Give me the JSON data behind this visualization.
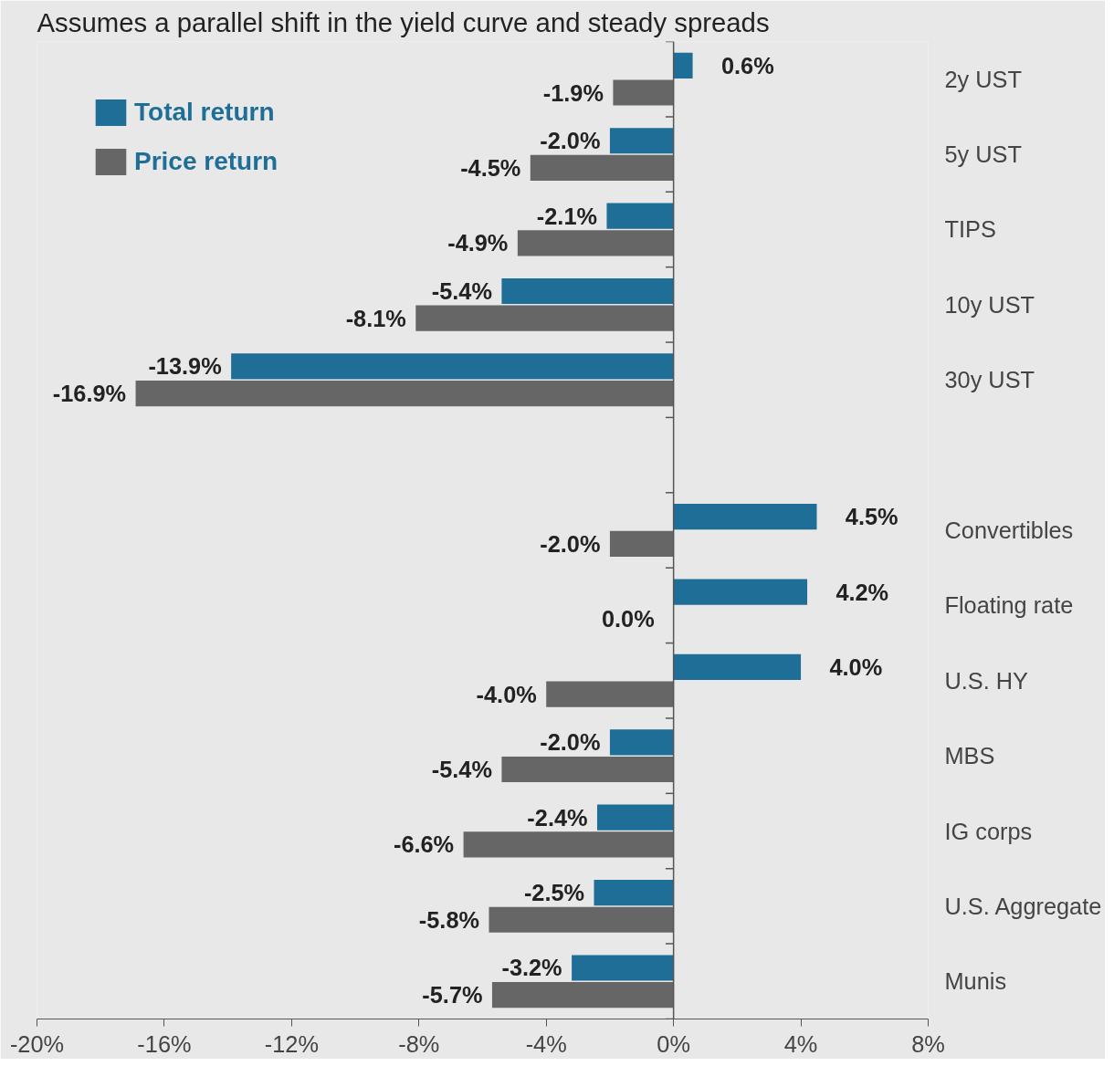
{
  "chart_data": {
    "type": "bar",
    "orientation": "horizontal",
    "title": "Assumes a parallel shift in the yield curve and steady spreads",
    "categories": [
      "2y UST",
      "5y UST",
      "TIPS",
      "10y UST",
      "30y UST",
      null,
      "Convertibles",
      "Floating rate",
      "U.S. HY",
      "MBS",
      "IG corps",
      "U.S. Aggregate",
      "Munis"
    ],
    "series": [
      {
        "name": "Total return",
        "color": "#1f6e97",
        "values": [
          0.6,
          -2.0,
          -2.1,
          -5.4,
          -13.9,
          null,
          4.5,
          4.2,
          4.0,
          -2.0,
          -2.4,
          -2.5,
          -3.2
        ],
        "value_labels": [
          "0.6%",
          "-2.0%",
          "-2.1%",
          "-5.4%",
          "-13.9%",
          null,
          "4.5%",
          "4.2%",
          "4.0%",
          "-2.0%",
          "-2.4%",
          "-2.5%",
          "-3.2%"
        ]
      },
      {
        "name": "Price return",
        "color": "#666666",
        "values": [
          -1.9,
          -4.5,
          -4.9,
          -8.1,
          -16.9,
          null,
          -2.0,
          0.0,
          -4.0,
          -5.4,
          -6.6,
          -5.8,
          -5.7
        ],
        "value_labels": [
          "-1.9%",
          "-4.5%",
          "-4.9%",
          "-8.1%",
          "-16.9%",
          null,
          "-2.0%",
          "0.0%",
          "-4.0%",
          "-5.4%",
          "-6.6%",
          "-5.8%",
          "-5.7%"
        ]
      }
    ],
    "xlim": [
      -20,
      8
    ],
    "xticks": [
      {
        "value": -20,
        "label": "-20%"
      },
      {
        "value": -16,
        "label": "-16%"
      },
      {
        "value": -12,
        "label": "-12%"
      },
      {
        "value": -8,
        "label": "-8%"
      },
      {
        "value": -4,
        "label": "-4%"
      },
      {
        "value": 0,
        "label": "0%"
      },
      {
        "value": 4,
        "label": "4%"
      },
      {
        "value": 8,
        "label": "8%"
      }
    ],
    "ref_lines": [
      {
        "axis": "x",
        "value": 0,
        "color": "#555555"
      }
    ],
    "legend": "top left"
  }
}
